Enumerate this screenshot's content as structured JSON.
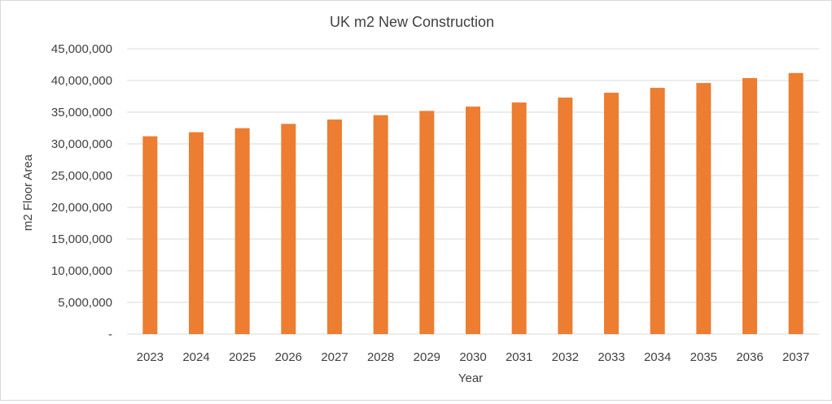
{
  "chart_data": {
    "type": "bar",
    "title": "UK m2 New Construction",
    "xlabel": "Year",
    "ylabel": "m2 Floor Area",
    "categories": [
      "2023",
      "2024",
      "2025",
      "2026",
      "2027",
      "2028",
      "2029",
      "2030",
      "2031",
      "2032",
      "2033",
      "2034",
      "2035",
      "2036",
      "2037"
    ],
    "series": [
      {
        "name": "m2 Floor Area",
        "values": [
          31200000,
          31840000,
          32480000,
          33160000,
          33840000,
          34530000,
          35200000,
          35880000,
          36530000,
          37300000,
          38070000,
          38840000,
          39600000,
          40380000,
          41180000
        ]
      }
    ],
    "ylim": [
      0,
      45000000
    ],
    "yticks": [
      0,
      5000000,
      10000000,
      15000000,
      20000000,
      25000000,
      30000000,
      35000000,
      40000000,
      45000000
    ],
    "ytick_labels": [
      "-",
      "5,000,000",
      "10,000,000",
      "15,000,000",
      "20,000,000",
      "25,000,000",
      "30,000,000",
      "35,000,000",
      "40,000,000",
      "45,000,000"
    ],
    "grid": true,
    "legend": "none",
    "colors": {
      "bar": "#ED7D31",
      "grid": "#d9d9d9"
    }
  }
}
